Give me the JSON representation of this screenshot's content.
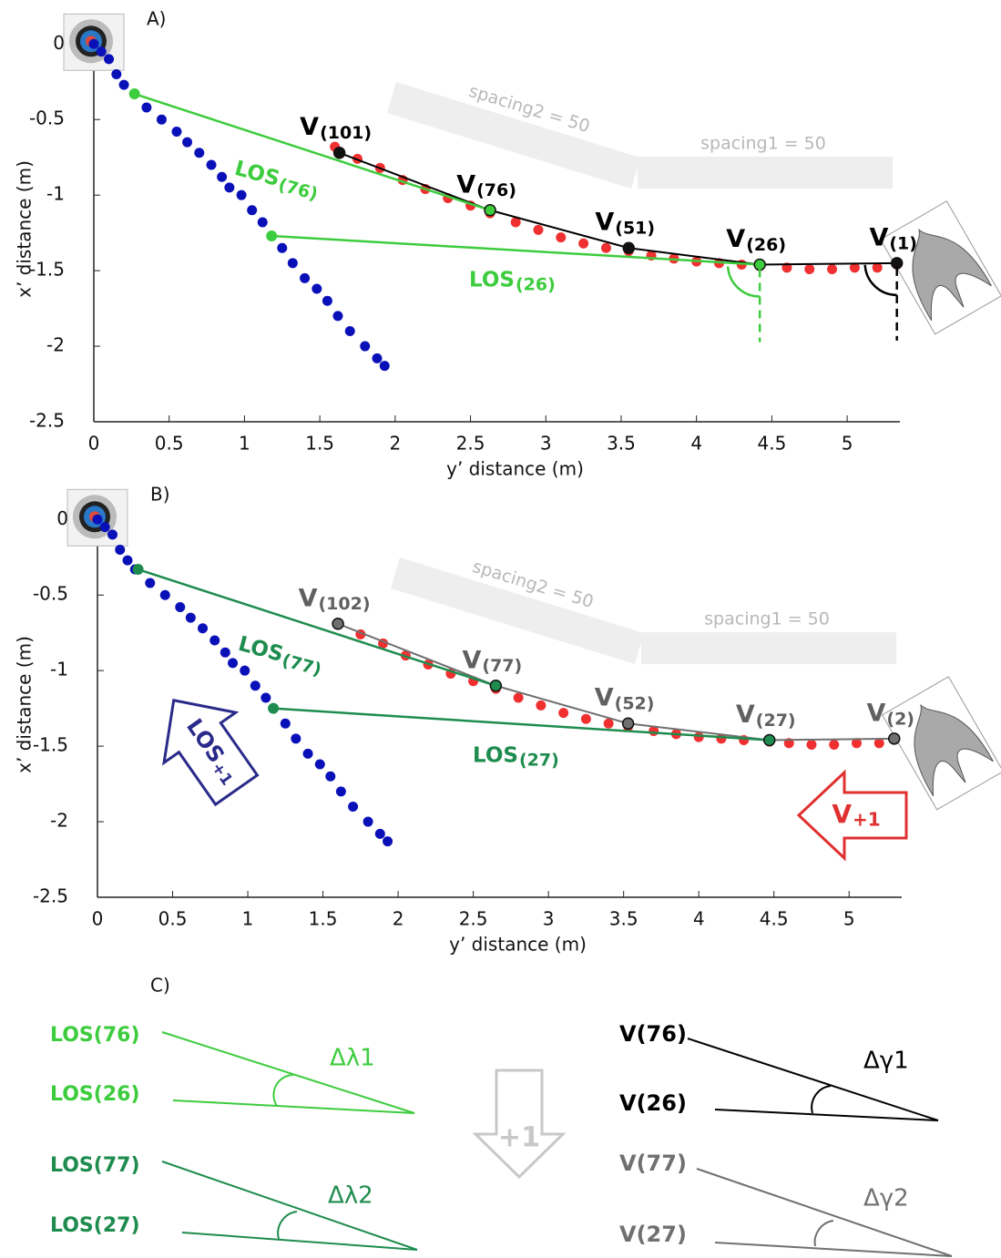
{
  "chart_data": [
    {
      "type": "scatter",
      "panel_label": "A)",
      "xlabel": "y’ distance (m)",
      "ylabel": "x’ distance (m)",
      "xlim": [
        0,
        5.35
      ],
      "ylim": [
        -2.5,
        0.05
      ],
      "xticks": [
        0,
        0.5,
        1,
        1.5,
        2,
        2.5,
        3,
        3.5,
        4,
        4.5,
        5
      ],
      "yticks": [
        -2.5,
        -2,
        -1.5,
        -1,
        -0.5,
        0
      ],
      "series": [
        {
          "color": "#0a10b8",
          "x": [
            0,
            0.05,
            0.1,
            0.15,
            0.2,
            0.27,
            0.35,
            0.45,
            0.55,
            0.62,
            0.7,
            0.78,
            0.85,
            0.9,
            0.98,
            1.05,
            1.12,
            1.18,
            1.25,
            1.32,
            1.4,
            1.48,
            1.55,
            1.62,
            1.7,
            1.8,
            1.88,
            1.93
          ],
          "values": [
            0,
            -0.05,
            -0.1,
            -0.2,
            -0.27,
            -0.33,
            -0.42,
            -0.5,
            -0.58,
            -0.65,
            -0.72,
            -0.8,
            -0.88,
            -0.95,
            -1.0,
            -1.1,
            -1.18,
            -1.27,
            -1.35,
            -1.45,
            -1.55,
            -1.62,
            -1.7,
            -1.8,
            -1.9,
            -2.0,
            -2.08,
            -2.13
          ]
        },
        {
          "color": "#f03030",
          "x": [
            1.6,
            1.75,
            1.9,
            2.05,
            2.2,
            2.35,
            2.5,
            2.63,
            2.8,
            2.95,
            3.1,
            3.25,
            3.4,
            3.55,
            3.7,
            3.85,
            4.0,
            4.15,
            4.3,
            4.42,
            4.6,
            4.75,
            4.9,
            5.05,
            5.2,
            5.33
          ],
          "values": [
            -0.68,
            -0.76,
            -0.82,
            -0.9,
            -0.96,
            -1.02,
            -1.07,
            -1.12,
            -1.18,
            -1.23,
            -1.28,
            -1.32,
            -1.35,
            -1.37,
            -1.4,
            -1.42,
            -1.44,
            -1.45,
            -1.46,
            -1.47,
            -1.48,
            -1.49,
            -1.49,
            -1.48,
            -1.48,
            -1.46
          ]
        }
      ],
      "path": {
        "color": "#000000",
        "x": [
          1.63,
          2.63,
          3.55,
          4.42,
          5.33
        ],
        "values": [
          -0.72,
          -1.1,
          -1.35,
          -1.46,
          -1.45
        ]
      },
      "annotations": [
        {
          "label": "V",
          "sub": "(101)",
          "x": 1.63,
          "y": -0.72,
          "color": "#000000",
          "marker": "#111111"
        },
        {
          "label": "V",
          "sub": "(76)",
          "x": 2.63,
          "y": -1.1,
          "color": "#000000",
          "marker": "#3dcc3d"
        },
        {
          "label": "V",
          "sub": "(51)",
          "x": 3.55,
          "y": -1.35,
          "color": "#000000",
          "marker": "#111111"
        },
        {
          "label": "V",
          "sub": "(26)",
          "x": 4.42,
          "y": -1.46,
          "color": "#000000",
          "marker": "#3dcc3d"
        },
        {
          "label": "V",
          "sub": "(1)",
          "x": 5.33,
          "y": -1.45,
          "color": "#000000",
          "marker": "#111111"
        }
      ],
      "sight_lines": [
        {
          "label": "LOS",
          "sub": "(76)",
          "color": "#3dcc3d",
          "x": [
            0.27,
            2.63
          ],
          "values": [
            -0.33,
            -1.1
          ]
        },
        {
          "label": "LOS",
          "sub": "(26)",
          "color": "#3dcc3d",
          "x": [
            1.18,
            4.42
          ],
          "values": [
            -1.27,
            -1.46
          ]
        }
      ],
      "notes": [
        "spacing2 = 50",
        "spacing1 = 50"
      ]
    },
    {
      "type": "scatter",
      "panel_label": "B)",
      "xlabel": "y’ distance (m)",
      "ylabel": "x’ distance (m)",
      "xlim": [
        0,
        5.35
      ],
      "ylim": [
        -2.5,
        0.05
      ],
      "xticks": [
        0,
        0.5,
        1,
        1.5,
        2,
        2.5,
        3,
        3.5,
        4,
        4.5,
        5
      ],
      "yticks": [
        -2.5,
        -2,
        -1.5,
        -1,
        -0.5,
        0
      ],
      "series": [
        {
          "color": "#0a10b8",
          "x": [
            0,
            0.05,
            0.1,
            0.15,
            0.2,
            0.25,
            0.35,
            0.45,
            0.55,
            0.62,
            0.7,
            0.78,
            0.85,
            0.9,
            0.98,
            1.05,
            1.12,
            1.17,
            1.25,
            1.32,
            1.4,
            1.48,
            1.55,
            1.62,
            1.7,
            1.8,
            1.88,
            1.93
          ],
          "values": [
            0,
            -0.05,
            -0.1,
            -0.2,
            -0.27,
            -0.33,
            -0.42,
            -0.5,
            -0.58,
            -0.65,
            -0.72,
            -0.8,
            -0.88,
            -0.95,
            -1.0,
            -1.1,
            -1.18,
            -1.25,
            -1.35,
            -1.45,
            -1.55,
            -1.62,
            -1.7,
            -1.8,
            -1.9,
            -2.0,
            -2.08,
            -2.13
          ]
        },
        {
          "color": "#f03030",
          "x": [
            1.6,
            1.75,
            1.9,
            2.05,
            2.2,
            2.35,
            2.5,
            2.65,
            2.8,
            2.95,
            3.1,
            3.25,
            3.4,
            3.53,
            3.7,
            3.85,
            4.0,
            4.15,
            4.3,
            4.47,
            4.6,
            4.75,
            4.9,
            5.05,
            5.2,
            5.3
          ],
          "values": [
            -0.69,
            -0.76,
            -0.82,
            -0.9,
            -0.96,
            -1.02,
            -1.07,
            -1.12,
            -1.18,
            -1.23,
            -1.28,
            -1.32,
            -1.35,
            -1.37,
            -1.4,
            -1.42,
            -1.44,
            -1.45,
            -1.46,
            -1.47,
            -1.48,
            -1.49,
            -1.49,
            -1.48,
            -1.48,
            -1.45
          ]
        }
      ],
      "path": {
        "color": "#707070",
        "x": [
          1.6,
          2.65,
          3.53,
          4.47,
          5.3
        ],
        "values": [
          -0.69,
          -1.1,
          -1.35,
          -1.46,
          -1.45
        ]
      },
      "annotations": [
        {
          "label": "V",
          "sub": "(102)",
          "x": 1.6,
          "y": -0.69,
          "color": "#606060",
          "marker": "#707070"
        },
        {
          "label": "V",
          "sub": "(77)",
          "x": 2.65,
          "y": -1.1,
          "color": "#606060",
          "marker": "#1e8c4e"
        },
        {
          "label": "V",
          "sub": "(52)",
          "x": 3.53,
          "y": -1.35,
          "color": "#606060",
          "marker": "#707070"
        },
        {
          "label": "V",
          "sub": "(27)",
          "x": 4.47,
          "y": -1.46,
          "color": "#606060",
          "marker": "#1e8c4e"
        },
        {
          "label": "V",
          "sub": "(2)",
          "x": 5.3,
          "y": -1.45,
          "color": "#606060",
          "marker": "#707070"
        }
      ],
      "sight_lines": [
        {
          "label": "LOS",
          "sub": "(77)",
          "color": "#1e8c4e",
          "x": [
            0.27,
            2.65
          ],
          "values": [
            -0.33,
            -1.1
          ]
        },
        {
          "label": "LOS",
          "sub": "(27)",
          "color": "#1e8c4e",
          "x": [
            1.17,
            4.47
          ],
          "values": [
            -1.25,
            -1.46
          ]
        }
      ],
      "notes": [
        "spacing2 = 50",
        "spacing1 = 50"
      ],
      "arrows": [
        {
          "label": "LOS",
          "sub": "+1",
          "color": "#2a2a8a"
        },
        {
          "label": "V",
          "sub": "+1",
          "color": "#e03030"
        }
      ]
    }
  ],
  "diagram": {
    "panel_label": "C)",
    "los_76": "LOS(76)",
    "los_26": "LOS(26)",
    "dl1": "Δλ1",
    "los_77": "LOS(77)",
    "los_27": "LOS(27)",
    "dl2": "Δλ2",
    "v_76": "V(76)",
    "v_26": "V(26)",
    "dg1": "Δγ1",
    "v_77": "V(77)",
    "v_27": "V(27)",
    "dg2": "Δγ2",
    "step": "+1"
  }
}
